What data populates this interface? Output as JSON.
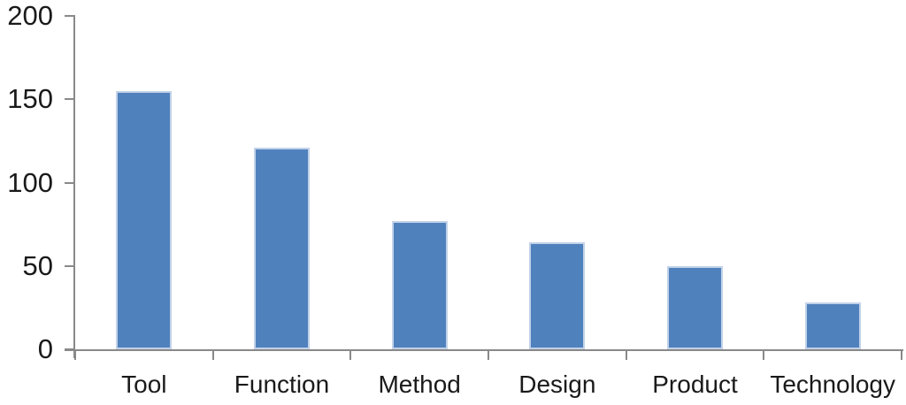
{
  "chart_data": {
    "type": "bar",
    "categories": [
      "Tool",
      "Function",
      "Method",
      "Design",
      "Product",
      "Technology"
    ],
    "values": [
      155,
      121,
      77,
      64,
      50,
      28
    ],
    "title": "",
    "xlabel": "",
    "ylabel": "",
    "ylim": [
      0,
      200
    ],
    "yticks": [
      0,
      50,
      100,
      150,
      200
    ],
    "grid": false,
    "legend": false,
    "bar_color": "#4f81bd",
    "bar_edge_color": "#c2d2e8",
    "axis_color": "#898989",
    "text_color": "#1a1a1a",
    "background_color": "#ffffff"
  }
}
